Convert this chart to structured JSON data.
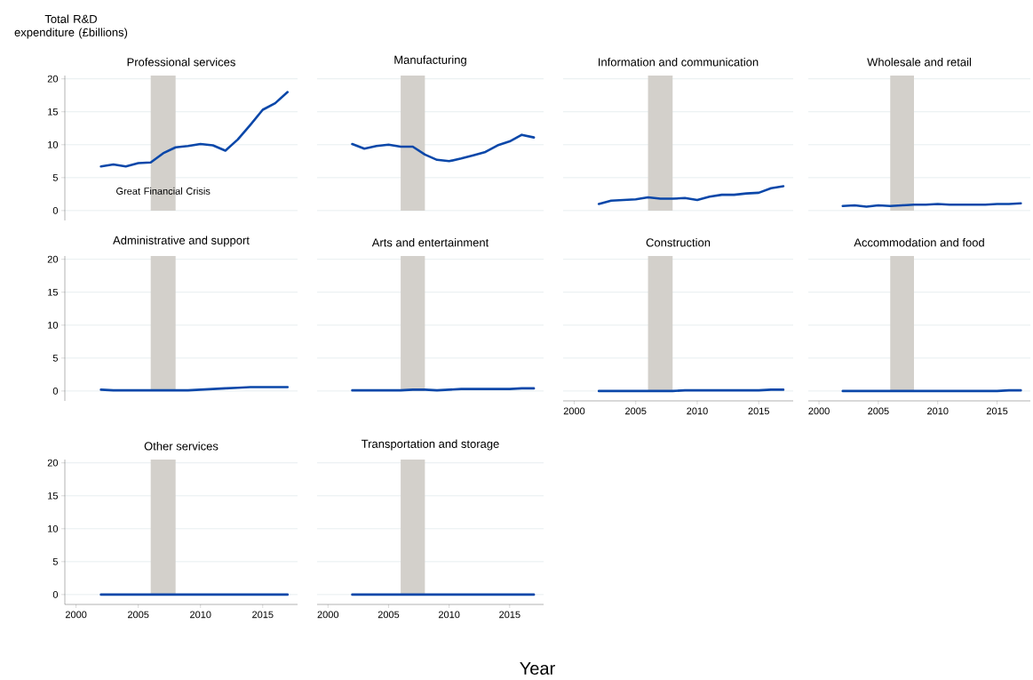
{
  "chart_data": [
    {
      "type": "line",
      "title": "Professional services",
      "ylabel": "Total R&D expenditure (£billions)",
      "annotations": [
        "Great Financial Crisis"
      ],
      "x": [
        2002,
        2003,
        2004,
        2005,
        2006,
        2007,
        2008,
        2009,
        2010,
        2011,
        2012,
        2013,
        2014,
        2015,
        2016,
        2017
      ],
      "values": [
        6.7,
        7.0,
        6.7,
        7.2,
        7.3,
        8.7,
        9.6,
        9.8,
        10.1,
        9.9,
        9.1,
        10.8,
        13.0,
        15.3,
        16.3,
        18.0
      ],
      "color": "#0a47a9",
      "xlim": [
        1999.1,
        2017.8
      ],
      "ylim": [
        -1.5,
        20.5
      ],
      "xticks": [
        2000,
        2005,
        2010,
        2015
      ],
      "yticks": [
        0,
        5,
        10,
        15,
        20
      ],
      "grid": "y",
      "tick_labels": "y",
      "bands": [
        {
          "axis": "x",
          "from": 2006,
          "to": 2008,
          "color": "#d3d0cb"
        }
      ]
    },
    {
      "type": "line",
      "title": "Manufacturing",
      "x": [
        2002,
        2003,
        2004,
        2005,
        2006,
        2007,
        2008,
        2009,
        2010,
        2011,
        2012,
        2013,
        2014,
        2015,
        2016,
        2017
      ],
      "values": [
        10.1,
        9.4,
        9.8,
        10.0,
        9.7,
        9.7,
        8.5,
        7.7,
        7.5,
        7.9,
        8.4,
        8.9,
        9.9,
        10.5,
        11.5,
        11.1
      ],
      "color": "#0a47a9",
      "xlim": [
        1999.1,
        2017.8
      ],
      "xticks": [
        2000,
        2005,
        2010,
        2015
      ],
      "yticks": [
        0,
        5,
        10,
        15,
        20
      ],
      "grid": "y",
      "tick_labels": false,
      "bands": [
        {
          "axis": "x",
          "from": 2006,
          "to": 2008,
          "color": "#d3d0cb"
        }
      ]
    },
    {
      "type": "line",
      "title": "Information and communication",
      "x": [
        2002,
        2003,
        2004,
        2005,
        2006,
        2007,
        2008,
        2009,
        2010,
        2011,
        2012,
        2013,
        2014,
        2015,
        2016,
        2017
      ],
      "values": [
        1.0,
        1.5,
        1.6,
        1.7,
        2.0,
        1.8,
        1.8,
        1.9,
        1.6,
        2.1,
        2.4,
        2.4,
        2.6,
        2.7,
        3.4,
        3.7
      ],
      "color": "#0a47a9",
      "xlim": [
        1999.1,
        2017.8
      ],
      "xticks": [
        2000,
        2005,
        2010,
        2015
      ],
      "yticks": [
        0,
        5,
        10,
        15,
        20
      ],
      "grid": "y",
      "tick_labels": false,
      "bands": [
        {
          "axis": "x",
          "from": 2006,
          "to": 2008,
          "color": "#d3d0cb"
        }
      ]
    },
    {
      "type": "line",
      "title": "Wholesale and retail",
      "x": [
        2002,
        2003,
        2004,
        2005,
        2006,
        2007,
        2008,
        2009,
        2010,
        2011,
        2012,
        2013,
        2014,
        2015,
        2016,
        2017
      ],
      "values": [
        0.7,
        0.8,
        0.6,
        0.8,
        0.7,
        0.8,
        0.9,
        0.9,
        1.0,
        0.9,
        0.9,
        0.9,
        0.9,
        1.0,
        1.0,
        1.1
      ],
      "color": "#0a47a9",
      "xlim": [
        1999.1,
        2017.8
      ],
      "xticks": [
        2000,
        2005,
        2010,
        2015
      ],
      "yticks": [
        0,
        5,
        10,
        15,
        20
      ],
      "grid": "y",
      "tick_labels": false,
      "bands": [
        {
          "axis": "x",
          "from": 2006,
          "to": 2008,
          "color": "#d3d0cb"
        }
      ]
    },
    {
      "type": "line",
      "title": "Administrative and support",
      "x": [
        2002,
        2003,
        2004,
        2005,
        2006,
        2007,
        2008,
        2009,
        2010,
        2011,
        2012,
        2013,
        2014,
        2015,
        2016,
        2017
      ],
      "values": [
        0.2,
        0.1,
        0.1,
        0.1,
        0.1,
        0.1,
        0.1,
        0.1,
        0.2,
        0.3,
        0.4,
        0.5,
        0.6,
        0.6,
        0.6,
        0.6
      ],
      "color": "#0a47a9",
      "xlim": [
        1999.1,
        2017.8
      ],
      "ylim": [
        -1.5,
        20.5
      ],
      "xticks": [
        2000,
        2005,
        2010,
        2015
      ],
      "yticks": [
        0,
        5,
        10,
        15,
        20
      ],
      "grid": "y",
      "tick_labels": "y",
      "bands": [
        {
          "axis": "x",
          "from": 2006,
          "to": 2008,
          "color": "#d3d0cb"
        }
      ]
    },
    {
      "type": "line",
      "title": "Arts and entertainment",
      "x": [
        2002,
        2003,
        2004,
        2005,
        2006,
        2007,
        2008,
        2009,
        2010,
        2011,
        2012,
        2013,
        2014,
        2015,
        2016,
        2017
      ],
      "values": [
        0.1,
        0.1,
        0.1,
        0.1,
        0.1,
        0.2,
        0.2,
        0.1,
        0.2,
        0.3,
        0.3,
        0.3,
        0.3,
        0.3,
        0.4,
        0.4
      ],
      "color": "#0a47a9",
      "xlim": [
        1999.1,
        2017.8
      ],
      "xticks": [
        2000,
        2005,
        2010,
        2015
      ],
      "yticks": [
        0,
        5,
        10,
        15,
        20
      ],
      "grid": "y",
      "tick_labels": false,
      "bands": [
        {
          "axis": "x",
          "from": 2006,
          "to": 2008,
          "color": "#d3d0cb"
        }
      ]
    },
    {
      "type": "line",
      "title": "Construction",
      "x": [
        2002,
        2003,
        2004,
        2005,
        2006,
        2007,
        2008,
        2009,
        2010,
        2011,
        2012,
        2013,
        2014,
        2015,
        2016,
        2017
      ],
      "values": [
        0.0,
        0.0,
        0.0,
        0.0,
        0.0,
        0.0,
        0.0,
        0.1,
        0.1,
        0.1,
        0.1,
        0.1,
        0.1,
        0.1,
        0.2,
        0.2
      ],
      "color": "#0a47a9",
      "xlim": [
        1999.1,
        2017.8
      ],
      "xticks": [
        2000,
        2005,
        2010,
        2015
      ],
      "yticks": [
        0,
        5,
        10,
        15,
        20
      ],
      "grid": "y",
      "tick_labels": "x",
      "bands": [
        {
          "axis": "x",
          "from": 2006,
          "to": 2008,
          "color": "#d3d0cb"
        }
      ]
    },
    {
      "type": "line",
      "title": "Accommodation and food",
      "x": [
        2002,
        2003,
        2004,
        2005,
        2006,
        2007,
        2008,
        2009,
        2010,
        2011,
        2012,
        2013,
        2014,
        2015,
        2016,
        2017
      ],
      "values": [
        0.0,
        0.0,
        0.0,
        0.0,
        0.0,
        0.0,
        0.0,
        0.0,
        0.0,
        0.0,
        0.0,
        0.0,
        0.0,
        0.0,
        0.1,
        0.1
      ],
      "color": "#0a47a9",
      "xlim": [
        1999.1,
        2017.8
      ],
      "xticks": [
        2000,
        2005,
        2010,
        2015
      ],
      "yticks": [
        0,
        5,
        10,
        15,
        20
      ],
      "grid": "y",
      "tick_labels": "x",
      "bands": [
        {
          "axis": "x",
          "from": 2006,
          "to": 2008,
          "color": "#d3d0cb"
        }
      ]
    },
    {
      "type": "line",
      "title": "Other services",
      "x": [
        2002,
        2003,
        2004,
        2005,
        2006,
        2007,
        2008,
        2009,
        2010,
        2011,
        2012,
        2013,
        2014,
        2015,
        2016,
        2017
      ],
      "values": [
        0.0,
        0.0,
        0.0,
        0.0,
        0.0,
        0.0,
        0.0,
        0.0,
        0.0,
        0.0,
        0.0,
        0.0,
        0.0,
        0.0,
        0.0,
        0.0
      ],
      "color": "#0a47a9",
      "xlim": [
        1999.1,
        2017.8
      ],
      "ylim": [
        -1.5,
        20.5
      ],
      "xticks": [
        2000,
        2005,
        2010,
        2015
      ],
      "yticks": [
        0,
        5,
        10,
        15,
        20
      ],
      "grid": "y",
      "bands": [
        {
          "axis": "x",
          "from": 2006,
          "to": 2008,
          "color": "#d3d0cb"
        }
      ]
    },
    {
      "type": "line",
      "title": "Transportation and storage",
      "xlabel": "Year",
      "x": [
        2002,
        2003,
        2004,
        2005,
        2006,
        2007,
        2008,
        2009,
        2010,
        2011,
        2012,
        2013,
        2014,
        2015,
        2016,
        2017
      ],
      "values": [
        0.0,
        0.0,
        0.0,
        0.0,
        0.0,
        0.0,
        0.0,
        0.0,
        0.0,
        0.0,
        0.0,
        0.0,
        0.0,
        0.0,
        0.0,
        0.0
      ],
      "color": "#0a47a9",
      "xlim": [
        1999.1,
        2017.8
      ],
      "xticks": [
        2000,
        2005,
        2010,
        2015
      ],
      "yticks": [
        0,
        5,
        10,
        15,
        20
      ],
      "grid": "y",
      "tick_labels": "x",
      "bands": [
        {
          "axis": "x",
          "from": 2006,
          "to": 2008,
          "color": "#d3d0cb"
        }
      ]
    }
  ]
}
